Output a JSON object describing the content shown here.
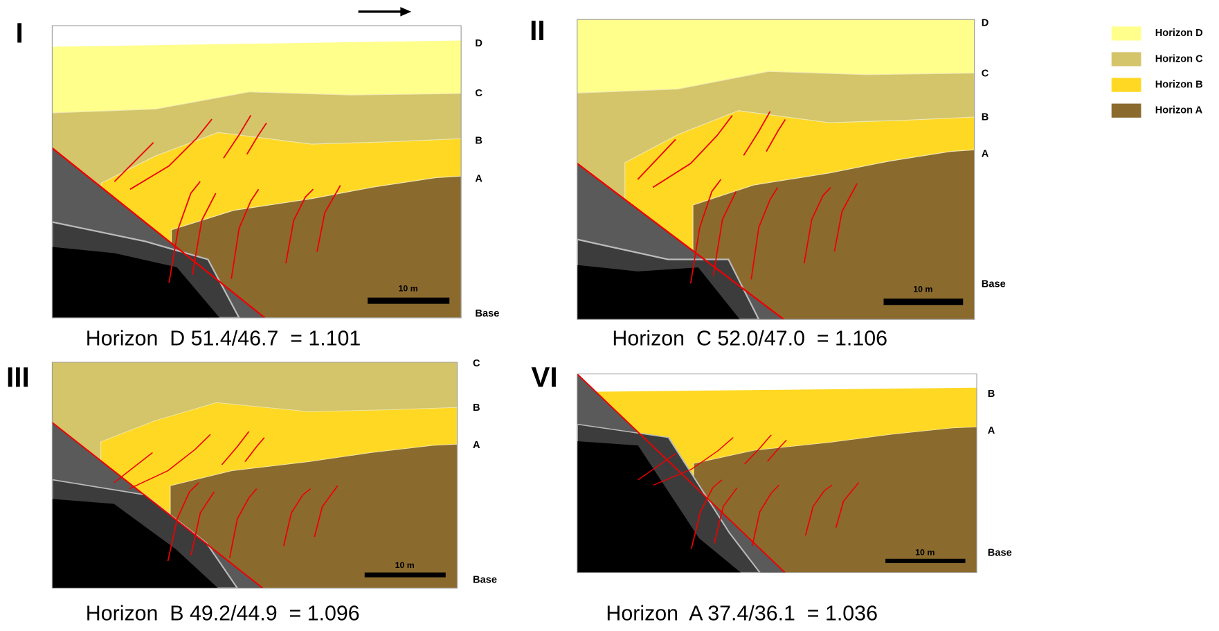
{
  "direction_arrow": true,
  "panels": [
    {
      "label": "I",
      "horizon_labels": [
        "D",
        "C",
        "B",
        "A",
        "Base"
      ],
      "scale_bar": "10 m",
      "caption": "Horizon  D 51.4/46.7  = 1.101"
    },
    {
      "label": "II",
      "horizon_labels": [
        "D",
        "C",
        "B",
        "A",
        "Base"
      ],
      "scale_bar": "10 m",
      "caption": "Horizon  C 52.0/47.0  = 1.106"
    },
    {
      "label": "III",
      "horizon_labels": [
        "C",
        "B",
        "A",
        "Base"
      ],
      "scale_bar": "10 m",
      "caption": "Horizon  B 49.2/44.9  = 1.096"
    },
    {
      "label": "VI",
      "horizon_labels": [
        "B",
        "A",
        "Base"
      ],
      "scale_bar": "10 m",
      "caption": "Horizon  A 37.4/36.1  = 1.036"
    }
  ],
  "legend": [
    {
      "label": "Horizon D",
      "color": "#ffff8c"
    },
    {
      "label": "Horizon C",
      "color": "#d4c46a"
    },
    {
      "label": "Horizon B",
      "color": "#ffd823"
    },
    {
      "label": "Horizon A",
      "color": "#8b6a2e"
    }
  ]
}
